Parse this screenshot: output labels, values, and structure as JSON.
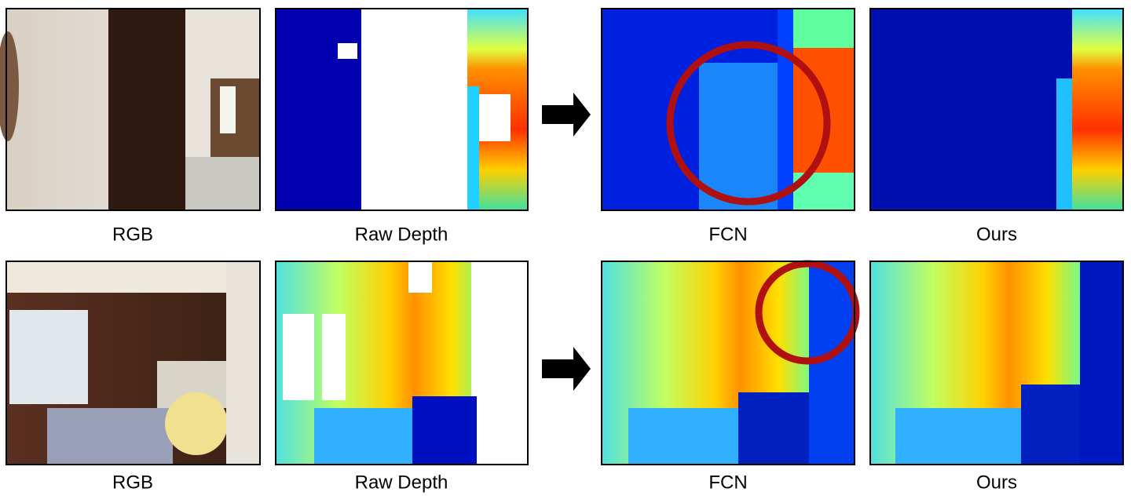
{
  "rows": [
    {
      "panels": [
        {
          "label": "RGB"
        },
        {
          "label": "Raw Depth"
        },
        {
          "label": "FCN"
        },
        {
          "label": "Ours"
        }
      ]
    },
    {
      "panels": [
        {
          "label": "RGB"
        },
        {
          "label": "Raw Depth"
        },
        {
          "label": "FCN"
        },
        {
          "label": "Ours"
        }
      ]
    }
  ]
}
